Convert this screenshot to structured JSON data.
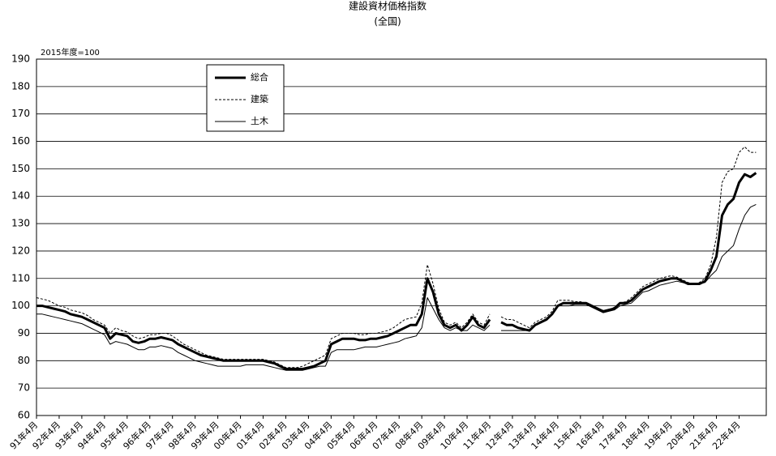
{
  "chart_data": {
    "type": "line",
    "title": "建設資材価格指数",
    "subtitle": "(全国)",
    "unit_label": "2015年度=100",
    "categories": [
      "91年4月",
      null,
      null,
      null,
      "92年4月",
      null,
      null,
      null,
      "93年4月",
      null,
      null,
      null,
      "94年4月",
      null,
      null,
      null,
      "95年4月",
      null,
      null,
      null,
      "96年4月",
      null,
      null,
      null,
      "97年4月",
      null,
      null,
      null,
      "98年4月",
      null,
      null,
      null,
      "99年4月",
      null,
      null,
      null,
      "00年4月",
      null,
      null,
      null,
      "01年4月",
      null,
      null,
      null,
      "02年4月",
      null,
      null,
      null,
      "03年4月",
      null,
      null,
      null,
      "04年4月",
      null,
      null,
      null,
      "05年4月",
      null,
      null,
      null,
      "06年4月",
      null,
      null,
      null,
      "07年4月",
      null,
      null,
      null,
      "08年4月",
      null,
      null,
      null,
      "09年4月",
      null,
      null,
      null,
      "10年4月",
      null,
      null,
      null,
      "11年4月",
      null,
      null,
      null,
      "12年4月",
      null,
      null,
      null,
      "13年4月",
      null,
      null,
      null,
      "14年4月",
      null,
      null,
      null,
      "15年4月",
      null,
      null,
      null,
      "16年4月",
      null,
      null,
      null,
      "17年4月",
      null,
      null,
      null,
      "18年4月",
      null,
      null,
      null,
      "19年4月",
      null,
      null,
      null,
      "20年4月",
      null,
      null,
      null,
      "21年4月",
      null,
      null,
      null,
      "22年4月",
      null,
      null,
      null
    ],
    "series": [
      {
        "name": "総合",
        "color": "#000000",
        "line_width": 3,
        "line_style": "solid",
        "values": [
          100,
          100,
          99.5,
          99,
          98.5,
          98,
          97,
          96.5,
          96,
          95,
          94,
          93,
          92,
          88,
          90,
          89.5,
          89,
          87,
          86.5,
          87,
          88,
          88,
          88.5,
          88,
          87.5,
          86,
          85,
          84,
          83,
          82,
          81.5,
          81,
          80.5,
          80,
          80,
          80,
          80,
          80,
          80,
          80,
          80,
          79.5,
          79,
          78,
          77,
          77,
          77,
          77,
          77.5,
          78,
          79,
          80,
          86,
          87,
          88,
          88,
          88,
          87.5,
          87.5,
          88,
          88,
          88.5,
          89,
          90,
          91,
          92,
          93,
          93,
          97,
          110,
          105,
          97,
          93,
          92,
          93,
          91,
          93,
          96,
          93,
          92,
          95,
          null,
          94,
          93,
          93,
          92,
          91.5,
          91,
          93,
          94,
          95,
          97,
          100,
          101,
          101,
          101,
          101,
          101,
          100,
          99,
          98,
          98.5,
          99,
          101,
          101,
          102,
          104,
          106,
          107,
          108,
          109,
          109.5,
          110,
          110,
          109,
          108,
          108,
          108,
          109,
          113,
          118,
          133,
          137,
          139,
          145,
          148,
          147,
          148.5
        ]
      },
      {
        "name": "建築",
        "color": "#000000",
        "line_width": 1,
        "line_style": "dashed",
        "values": [
          103,
          102.5,
          102,
          101,
          100,
          99.5,
          98.5,
          98,
          97.5,
          96.5,
          95,
          94,
          93,
          90,
          92,
          91,
          90.5,
          89,
          88,
          88.5,
          89.5,
          89.5,
          90,
          90,
          89,
          87.5,
          86,
          85,
          84,
          83,
          82,
          81.5,
          81,
          80.5,
          80.5,
          80.5,
          80.5,
          80.5,
          80.5,
          80.5,
          80.5,
          80,
          79.5,
          78.5,
          77.5,
          77.5,
          77.5,
          78,
          79,
          80,
          81,
          82,
          88,
          89,
          90,
          90,
          90,
          89.5,
          89.5,
          90,
          90,
          90.5,
          91,
          92,
          93.5,
          95,
          95.5,
          96,
          101,
          115,
          108,
          99,
          94,
          93,
          94,
          92,
          94,
          97,
          94,
          93,
          97,
          null,
          96,
          95,
          95,
          94,
          93,
          92,
          94,
          95,
          96,
          98,
          102,
          102,
          102,
          101.5,
          101.5,
          101,
          100,
          98.5,
          98,
          98.5,
          99.5,
          101,
          101.5,
          103,
          105,
          107,
          108,
          109,
          110,
          110.5,
          111,
          110.5,
          109.5,
          108.5,
          108,
          108.5,
          110,
          115,
          125,
          145,
          149,
          150,
          156,
          158,
          156,
          156
        ]
      },
      {
        "name": "土木",
        "color": "#000000",
        "line_width": 1,
        "line_style": "solid",
        "values": [
          97,
          97,
          96.5,
          96,
          95.5,
          95,
          94.5,
          94,
          93.5,
          92.5,
          91.5,
          90.5,
          89.5,
          86,
          87,
          86.5,
          86,
          85,
          84,
          84,
          85,
          85,
          85.5,
          85,
          84.5,
          83,
          82,
          81,
          80,
          79.5,
          79,
          78.5,
          78,
          78,
          78,
          78,
          78,
          78.5,
          78.5,
          78.5,
          78.5,
          78,
          77.5,
          77,
          76.5,
          76.5,
          76.5,
          76.5,
          77,
          77.5,
          78,
          78,
          83,
          84,
          84,
          84,
          84,
          84.5,
          85,
          85,
          85,
          85.5,
          86,
          86.5,
          87,
          88,
          88.5,
          89,
          92,
          103,
          99,
          95,
          92,
          91,
          92,
          91,
          91,
          93,
          92,
          91,
          93,
          null,
          91,
          91,
          91,
          91,
          91,
          91,
          93,
          94,
          95,
          97,
          100,
          100,
          100,
          100.5,
          100.5,
          100.5,
          99.5,
          98.5,
          97.5,
          98,
          98.5,
          100,
          100.5,
          101,
          103,
          105,
          105.5,
          106.5,
          107.5,
          108,
          108.5,
          109,
          108.5,
          108,
          108,
          108,
          108.5,
          111,
          113,
          118,
          120,
          122,
          128,
          133,
          136,
          137
        ]
      }
    ],
    "ylim": [
      60,
      190
    ],
    "yticks": [
      60,
      70,
      80,
      90,
      100,
      110,
      120,
      130,
      140,
      150,
      160,
      170,
      180,
      190
    ],
    "grid": true,
    "legend": "upper-left"
  }
}
